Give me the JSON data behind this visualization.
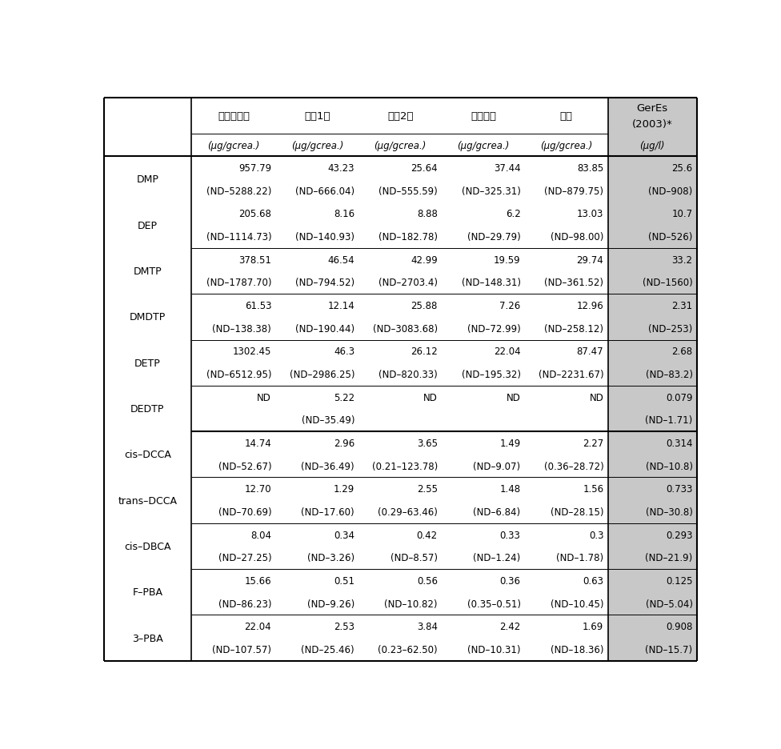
{
  "col_headers_line1": [
    "양성대조군",
    "일밠1차",
    "일밠2차",
    "초등학생",
    "산모",
    "GerEs\n(2003)*"
  ],
  "col_headers_line2": [
    "(μg/gcrea.)",
    "(μg/gcrea.)",
    "(μg/gcrea.)",
    "(μg/gcrea.)",
    "(μg/gcrea.)",
    "(μg/l)"
  ],
  "row_labels": [
    "DMP",
    "DEP",
    "DMTP",
    "DMDTP",
    "DETP",
    "DEDTP",
    "cis–DCCA",
    "trans–DCCA",
    "cis–DBCA",
    "F–PBA",
    "3–PBA"
  ],
  "data": [
    [
      "957.79",
      "43.23",
      "25.64",
      "37.44",
      "83.85",
      "25.6"
    ],
    [
      "(ND–5288.22)",
      "(ND–666.04)",
      "(ND–555.59)",
      "(ND–325.31)",
      "(ND–879.75)",
      "(ND–908)"
    ],
    [
      "205.68",
      "8.16",
      "8.88",
      "6.2",
      "13.03",
      "10.7"
    ],
    [
      "(ND–1114.73)",
      "(ND–140.93)",
      "(ND–182.78)",
      "(ND–29.79)",
      "(ND–98.00)",
      "(ND–526)"
    ],
    [
      "378.51",
      "46.54",
      "42.99",
      "19.59",
      "29.74",
      "33.2"
    ],
    [
      "(ND–1787.70)",
      "(ND–794.52)",
      "(ND–2703.4)",
      "(ND–148.31)",
      "(ND–361.52)",
      "(ND–1560)"
    ],
    [
      "61.53",
      "12.14",
      "25.88",
      "7.26",
      "12.96",
      "2.31"
    ],
    [
      "(ND–138.38)",
      "(ND–190.44)",
      "(ND–3083.68)",
      "(ND–72.99)",
      "(ND–258.12)",
      "(ND–253)"
    ],
    [
      "1302.45",
      "46.3",
      "26.12",
      "22.04",
      "87.47",
      "2.68"
    ],
    [
      "(ND–6512.95)",
      "(ND–2986.25)",
      "(ND–820.33)",
      "(ND–195.32)",
      "(ND–2231.67)",
      "(ND–83.2)"
    ],
    [
      "ND",
      "5.22",
      "ND",
      "ND",
      "ND",
      "0.079"
    ],
    [
      "",
      "(ND–35.49)",
      "",
      "",
      "",
      "(ND–1.71)"
    ],
    [
      "14.74",
      "2.96",
      "3.65",
      "1.49",
      "2.27",
      "0.314"
    ],
    [
      "(ND–52.67)",
      "(ND–36.49)",
      "(0.21–123.78)",
      "(ND–9.07)",
      "(0.36–28.72)",
      "(ND–10.8)"
    ],
    [
      "12.70",
      "1.29",
      "2.55",
      "1.48",
      "1.56",
      "0.733"
    ],
    [
      "(ND–70.69)",
      "(ND–17.60)",
      "(0.29–63.46)",
      "(ND–6.84)",
      "(ND–28.15)",
      "(ND–30.8)"
    ],
    [
      "8.04",
      "0.34",
      "0.42",
      "0.33",
      "0.3",
      "0.293"
    ],
    [
      "(ND–27.25)",
      "(ND–3.26)",
      "(ND–8.57)",
      "(ND–1.24)",
      "(ND–1.78)",
      "(ND–21.9)"
    ],
    [
      "15.66",
      "0.51",
      "0.56",
      "0.36",
      "0.63",
      "0.125"
    ],
    [
      "(ND–86.23)",
      "(ND–9.26)",
      "(ND–10.82)",
      "(0.35–0.51)",
      "(ND–10.45)",
      "(ND–5.04)"
    ],
    [
      "22.04",
      "2.53",
      "3.84",
      "2.42",
      "1.69",
      "0.908"
    ],
    [
      "(ND–107.57)",
      "(ND–25.46)",
      "(0.23–62.50)",
      "(ND–10.31)",
      "(ND–18.36)",
      "(ND–15.7)"
    ]
  ],
  "geres_col_bg": "#c8c8c8",
  "border_color": "#000000"
}
